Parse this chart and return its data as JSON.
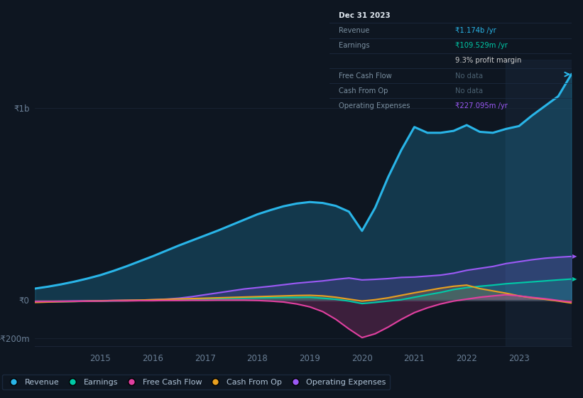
{
  "background_color": "#0e1621",
  "chart_bg": "#0e1621",
  "grid_color": "#1a2535",
  "years": [
    2013.75,
    2014.0,
    2014.25,
    2014.5,
    2014.75,
    2015.0,
    2015.25,
    2015.5,
    2015.75,
    2016.0,
    2016.25,
    2016.5,
    2016.75,
    2017.0,
    2017.25,
    2017.5,
    2017.75,
    2018.0,
    2018.25,
    2018.5,
    2018.75,
    2019.0,
    2019.25,
    2019.5,
    2019.75,
    2020.0,
    2020.25,
    2020.5,
    2020.75,
    2021.0,
    2021.25,
    2021.5,
    2021.75,
    2022.0,
    2022.25,
    2022.5,
    2022.75,
    2023.0,
    2023.25,
    2023.5,
    2023.75,
    2024.0
  ],
  "revenue": [
    60,
    70,
    82,
    96,
    112,
    130,
    152,
    176,
    202,
    228,
    256,
    284,
    310,
    336,
    362,
    390,
    418,
    446,
    468,
    488,
    502,
    510,
    505,
    490,
    460,
    360,
    480,
    640,
    780,
    900,
    870,
    870,
    880,
    910,
    875,
    870,
    890,
    905,
    960,
    1010,
    1060,
    1174
  ],
  "earnings": [
    -10,
    -9,
    -8,
    -7,
    -6,
    -5,
    -4,
    -3,
    -2,
    -1,
    0,
    2,
    4,
    6,
    8,
    10,
    11,
    12,
    13,
    14,
    14,
    15,
    10,
    4,
    -5,
    -18,
    -12,
    -5,
    2,
    15,
    28,
    40,
    55,
    65,
    72,
    78,
    85,
    90,
    95,
    100,
    105,
    109.5
  ],
  "free_cash_flow": [
    -8,
    -7,
    -7,
    -6,
    -6,
    -5,
    -4,
    -4,
    -3,
    -3,
    -2,
    -2,
    -1,
    -1,
    0,
    0,
    0,
    -2,
    -5,
    -10,
    -20,
    -35,
    -60,
    -100,
    -150,
    -195,
    -175,
    -140,
    -100,
    -65,
    -40,
    -20,
    -5,
    5,
    15,
    22,
    28,
    22,
    14,
    7,
    -2,
    -10
  ],
  "cash_from_op": [
    -12,
    -10,
    -8,
    -7,
    -5,
    -4,
    -2,
    -1,
    0,
    2,
    4,
    6,
    8,
    10,
    12,
    14,
    16,
    18,
    20,
    22,
    24,
    25,
    22,
    15,
    5,
    -5,
    2,
    12,
    25,
    38,
    50,
    62,
    72,
    78,
    60,
    48,
    36,
    22,
    12,
    4,
    -5,
    -15
  ],
  "operating_expenses": [
    -8,
    -7,
    -6,
    -5,
    -4,
    -3,
    -2,
    -1,
    0,
    2,
    5,
    10,
    18,
    28,
    38,
    48,
    58,
    65,
    72,
    80,
    88,
    94,
    100,
    108,
    115,
    105,
    108,
    112,
    118,
    120,
    125,
    130,
    140,
    155,
    165,
    175,
    190,
    200,
    210,
    218,
    223,
    227
  ],
  "revenue_color": "#29b5e8",
  "earnings_color": "#00c9a7",
  "free_cash_flow_color": "#e040a0",
  "cash_from_op_color": "#e8a020",
  "operating_expenses_color": "#9b59f5",
  "ylim": [
    -240,
    1250
  ],
  "ytick_positions": [
    -200,
    0,
    1000
  ],
  "ytick_labels": [
    "-₹200m",
    "₹0",
    "₹1b"
  ],
  "xticks": [
    2015,
    2016,
    2017,
    2018,
    2019,
    2020,
    2021,
    2022,
    2023
  ],
  "legend_labels": [
    "Revenue",
    "Earnings",
    "Free Cash Flow",
    "Cash From Op",
    "Operating Expenses"
  ],
  "legend_colors": [
    "#29b5e8",
    "#00c9a7",
    "#e040a0",
    "#e8a020",
    "#9b59f5"
  ],
  "tooltip_bg": "#0a111e",
  "tooltip_border": "#1e2d44",
  "tooltip_title": "Dec 31 2023",
  "tooltip_revenue_label": "Revenue",
  "tooltip_revenue_value": "₹1.174b /yr",
  "tooltip_earnings_label": "Earnings",
  "tooltip_earnings_value": "₹109.529m /yr",
  "tooltip_margin": "9.3% profit margin",
  "tooltip_fcf_label": "Free Cash Flow",
  "tooltip_fcf_value": "No data",
  "tooltip_cfop_label": "Cash From Op",
  "tooltip_cfop_value": "No data",
  "tooltip_opex_label": "Operating Expenses",
  "tooltip_opex_value": "₹227.095m /yr"
}
